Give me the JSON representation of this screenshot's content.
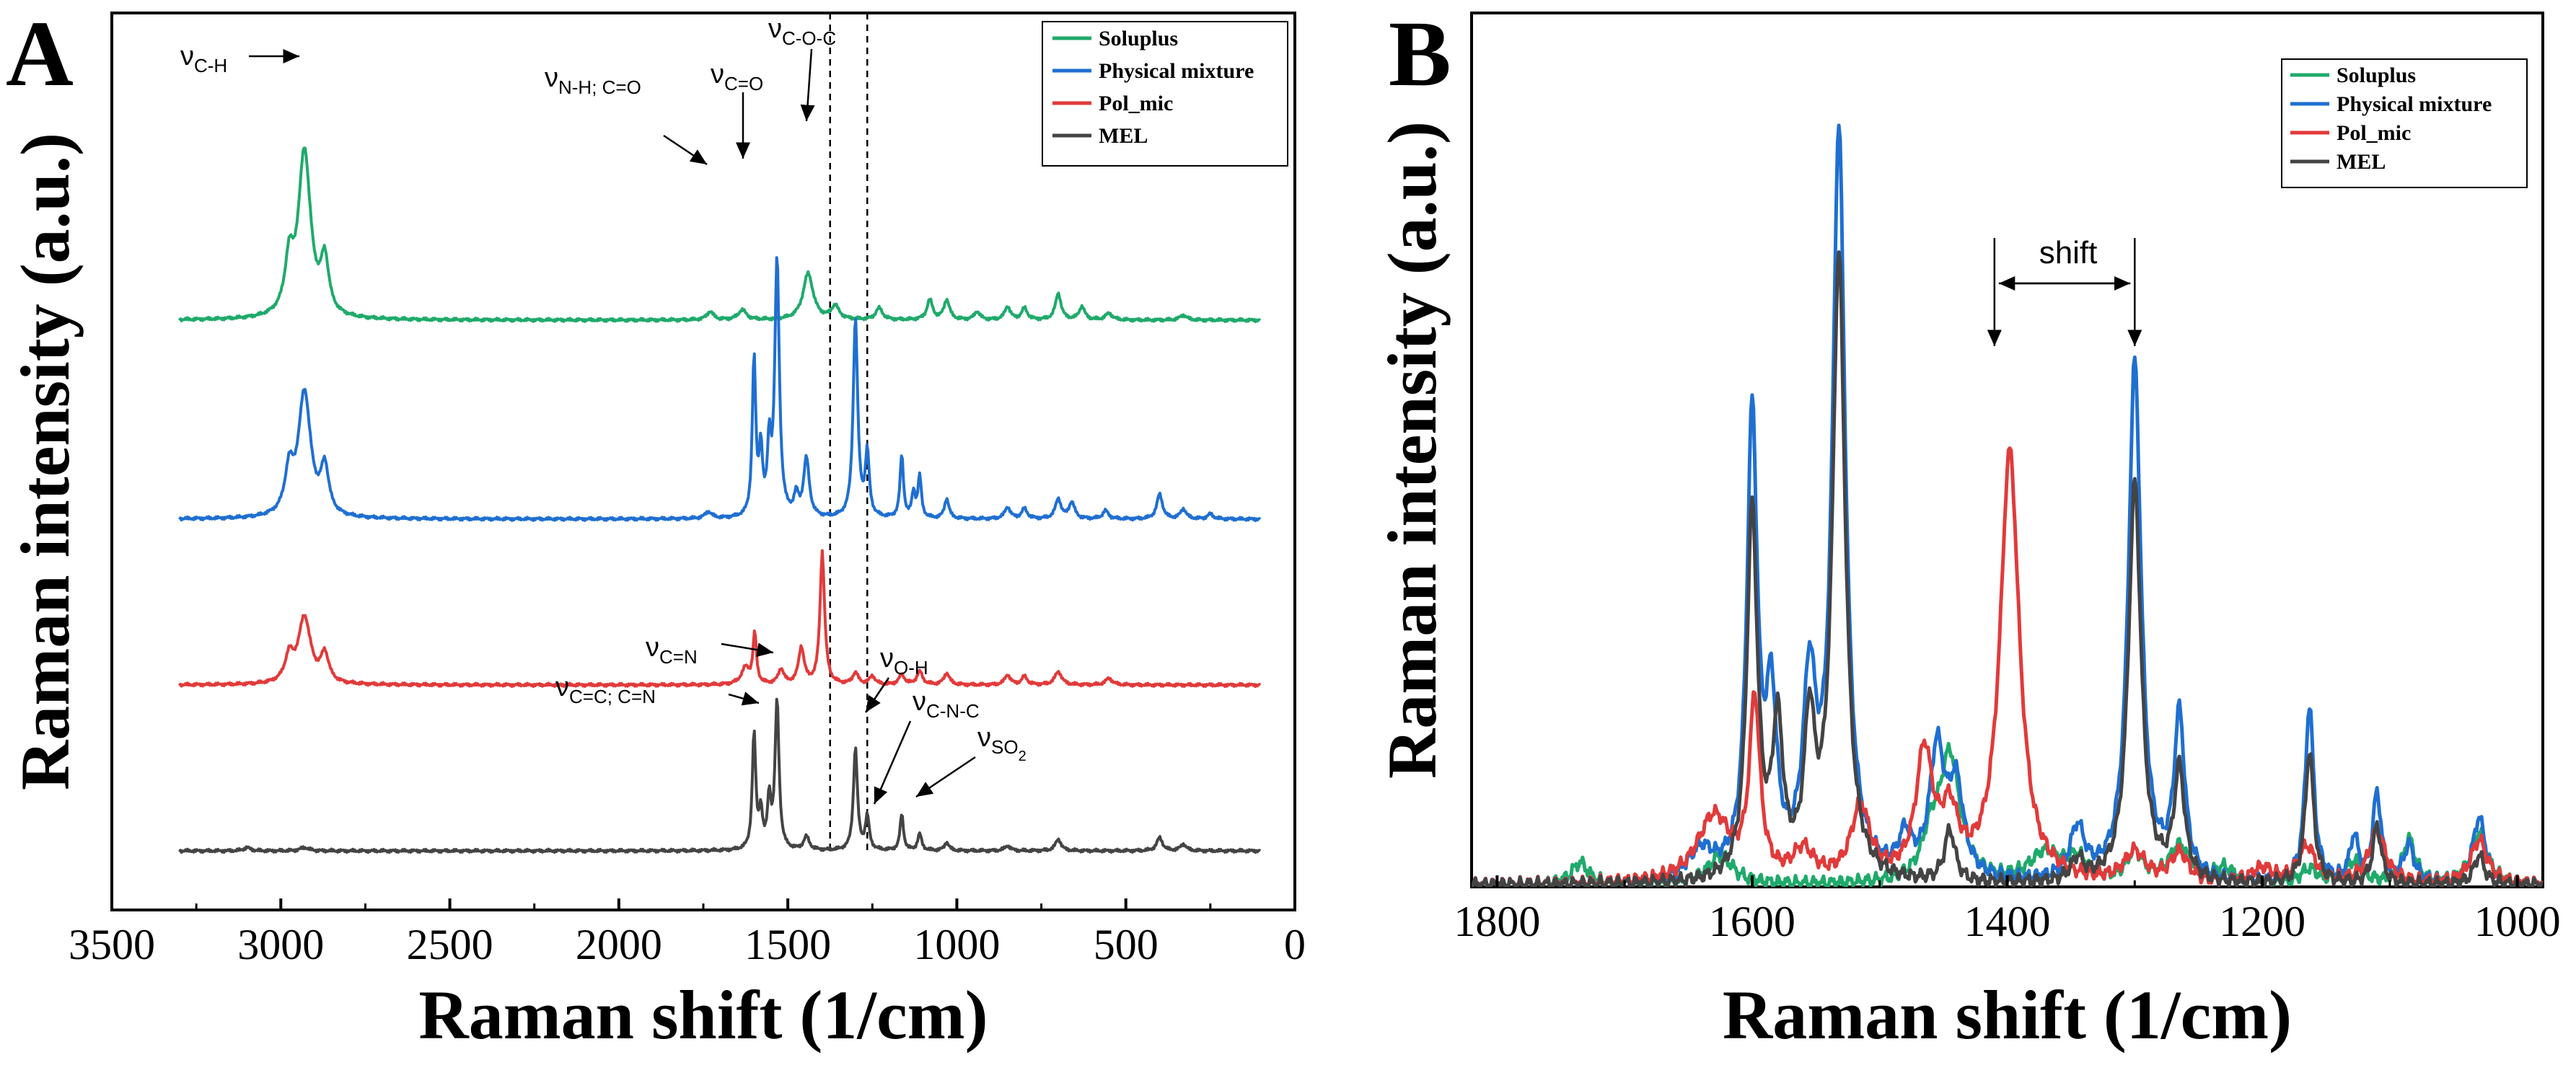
{
  "chart_data": [
    {
      "panel": "A",
      "type": "line",
      "xlabel": "Raman shift (1/cm)",
      "ylabel": "Raman intensity (a.u.)",
      "xlim": [
        3500,
        0
      ],
      "xticks": [
        "3500",
        "3000",
        "2500",
        "2000",
        "1500",
        "1000",
        "500",
        "0"
      ],
      "grid": false,
      "stacked": true,
      "legend_position": "top-right",
      "reference_lines_x": [
        1375,
        1265
      ],
      "series": [
        {
          "name": "Soluplus",
          "color": "#1faa6b",
          "offset": 3.2,
          "peaks": [
            [
              2930,
              1.0,
              22
            ],
            [
              2975,
              0.3,
              15
            ],
            [
              2870,
              0.32,
              14
            ],
            [
              1730,
              0.05,
              12
            ],
            [
              1635,
              0.06,
              14
            ],
            [
              1440,
              0.28,
              18
            ],
            [
              1360,
              0.08,
              14
            ],
            [
              1230,
              0.07,
              12
            ],
            [
              1080,
              0.12,
              10
            ],
            [
              1030,
              0.12,
              10
            ],
            [
              940,
              0.05,
              10
            ],
            [
              850,
              0.08,
              10
            ],
            [
              800,
              0.07,
              10
            ],
            [
              700,
              0.16,
              10
            ],
            [
              630,
              0.08,
              10
            ],
            [
              550,
              0.04,
              12
            ],
            [
              330,
              0.03,
              12
            ]
          ],
          "xmax": 3300,
          "xmin": 100
        },
        {
          "name": "Physical mixture",
          "color": "#1f6fd1",
          "offset": 2.0,
          "peaks": [
            [
              2930,
              0.75,
              22
            ],
            [
              2975,
              0.25,
              15
            ],
            [
              2870,
              0.28,
              14
            ],
            [
              1735,
              0.04,
              12
            ],
            [
              1600,
              0.95,
              6
            ],
            [
              1580,
              0.38,
              6
            ],
            [
              1555,
              0.4,
              6
            ],
            [
              1532,
              1.55,
              8
            ],
            [
              1475,
              0.12,
              8
            ],
            [
              1445,
              0.35,
              10
            ],
            [
              1300,
              1.2,
              8
            ],
            [
              1265,
              0.38,
              7
            ],
            [
              1163,
              0.38,
              6
            ],
            [
              1128,
              0.15,
              6
            ],
            [
              1110,
              0.25,
              6
            ],
            [
              1030,
              0.12,
              8
            ],
            [
              850,
              0.07,
              10
            ],
            [
              800,
              0.06,
              10
            ],
            [
              700,
              0.12,
              10
            ],
            [
              660,
              0.1,
              10
            ],
            [
              560,
              0.05,
              10
            ],
            [
              400,
              0.15,
              10
            ],
            [
              330,
              0.06,
              10
            ],
            [
              250,
              0.03,
              10
            ]
          ],
          "xmax": 3300,
          "xmin": 100
        },
        {
          "name": "Pol_mic",
          "color": "#e23a3a",
          "offset": 1.0,
          "peaks": [
            [
              2930,
              0.4,
              22
            ],
            [
              2975,
              0.15,
              15
            ],
            [
              2870,
              0.17,
              14
            ],
            [
              1625,
              0.1,
              15
            ],
            [
              1598,
              0.3,
              6
            ],
            [
              1520,
              0.09,
              10
            ],
            [
              1460,
              0.22,
              10
            ],
            [
              1398,
              0.8,
              8
            ],
            [
              1300,
              0.07,
              10
            ],
            [
              1250,
              0.05,
              10
            ],
            [
              1163,
              0.06,
              10
            ],
            [
              1110,
              0.08,
              10
            ],
            [
              1030,
              0.07,
              10
            ],
            [
              850,
              0.06,
              10
            ],
            [
              800,
              0.05,
              10
            ],
            [
              700,
              0.08,
              12
            ],
            [
              550,
              0.04,
              12
            ]
          ],
          "xmax": 3300,
          "xmin": 100
        },
        {
          "name": "MEL",
          "color": "#444444",
          "offset": 0.0,
          "peaks": [
            [
              3100,
              0.02,
              12
            ],
            [
              2930,
              0.02,
              15
            ],
            [
              1600,
              0.7,
              6
            ],
            [
              1580,
              0.22,
              6
            ],
            [
              1555,
              0.3,
              6
            ],
            [
              1532,
              0.9,
              7
            ],
            [
              1445,
              0.08,
              10
            ],
            [
              1300,
              0.62,
              7
            ],
            [
              1265,
              0.2,
              7
            ],
            [
              1163,
              0.22,
              6
            ],
            [
              1110,
              0.1,
              7
            ],
            [
              1030,
              0.05,
              8
            ],
            [
              850,
              0.03,
              10
            ],
            [
              700,
              0.07,
              10
            ],
            [
              400,
              0.08,
              10
            ],
            [
              330,
              0.04,
              10
            ]
          ],
          "xmax": 3300,
          "xmin": 100
        }
      ],
      "annotations": [
        {
          "main": "ν",
          "sub": "C-H"
        },
        {
          "main": "ν",
          "sub": "N-H; C=O"
        },
        {
          "main": "ν",
          "sub": "C=O"
        },
        {
          "main": "ν",
          "sub": "C-O-C"
        },
        {
          "main": "ν",
          "sub": "C=N"
        },
        {
          "main": "ν",
          "sub": "C=C; C=N"
        },
        {
          "main": "ν",
          "sub": "O-H"
        },
        {
          "main": "ν",
          "sub": "C-N-C"
        },
        {
          "main": "ν",
          "sub": "SO",
          "sub2": "2"
        }
      ]
    },
    {
      "panel": "B",
      "type": "line",
      "xlabel": "Raman shift (1/cm)",
      "ylabel": "Raman intensity (a.u.)",
      "xlim": [
        1820,
        980
      ],
      "xticks": [
        "1800",
        "1600",
        "1400",
        "1200",
        "1000"
      ],
      "grid": false,
      "stacked": false,
      "legend_position": "top-right",
      "annotation": "shift",
      "shift_arrow_x": [
        1410,
        1300
      ],
      "series": [
        {
          "name": "Soluplus",
          "color": "#1faa6b",
          "peaks": [
            [
              1735,
              0.03,
              8
            ],
            [
              1625,
              0.04,
              12
            ],
            [
              1445,
              0.17,
              10
            ],
            [
              1460,
              0.05,
              8
            ],
            [
              1370,
              0.04,
              15
            ],
            [
              1345,
              0.03,
              10
            ],
            [
              1300,
              0.04,
              8
            ],
            [
              1265,
              0.05,
              10
            ],
            [
              1230,
              0.02,
              10
            ],
            [
              1163,
              0.02,
              8
            ],
            [
              1128,
              0.03,
              8
            ],
            [
              1085,
              0.06,
              6
            ],
            [
              1030,
              0.07,
              8
            ]
          ]
        },
        {
          "name": "Physical mixture",
          "color": "#1f6fd1",
          "peaks": [
            [
              1640,
              0.04,
              12
            ],
            [
              1600,
              0.62,
              5
            ],
            [
              1585,
              0.22,
              5
            ],
            [
              1555,
              0.25,
              6
            ],
            [
              1532,
              1.0,
              6
            ],
            [
              1480,
              0.05,
              6
            ],
            [
              1455,
              0.17,
              7
            ],
            [
              1440,
              0.12,
              7
            ],
            [
              1345,
              0.07,
              7
            ],
            [
              1300,
              0.7,
              6
            ],
            [
              1265,
              0.22,
              5
            ],
            [
              1163,
              0.24,
              4
            ],
            [
              1128,
              0.06,
              4
            ],
            [
              1110,
              0.12,
              4
            ],
            [
              1085,
              0.05,
              5
            ],
            [
              1030,
              0.09,
              6
            ]
          ]
        },
        {
          "name": "Pol_mic",
          "color": "#e23a3a",
          "peaks": [
            [
              1630,
              0.09,
              16
            ],
            [
              1598,
              0.24,
              5
            ],
            [
              1560,
              0.04,
              10
            ],
            [
              1515,
              0.1,
              9
            ],
            [
              1465,
              0.17,
              8
            ],
            [
              1445,
              0.08,
              8
            ],
            [
              1398,
              0.58,
              9
            ],
            [
              1300,
              0.04,
              10
            ],
            [
              1265,
              0.04,
              8
            ],
            [
              1200,
              0.02,
              10
            ],
            [
              1165,
              0.05,
              8
            ],
            [
              1110,
              0.07,
              8
            ],
            [
              1030,
              0.06,
              8
            ]
          ]
        },
        {
          "name": "MEL",
          "color": "#444444",
          "peaks": [
            [
              1600,
              0.5,
              5
            ],
            [
              1580,
              0.2,
              5
            ],
            [
              1555,
              0.2,
              5
            ],
            [
              1532,
              0.84,
              6
            ],
            [
              1445,
              0.07,
              5
            ],
            [
              1345,
              0.03,
              6
            ],
            [
              1300,
              0.54,
              6
            ],
            [
              1265,
              0.15,
              5
            ],
            [
              1163,
              0.18,
              4
            ],
            [
              1110,
              0.08,
              4
            ],
            [
              1030,
              0.04,
              5
            ]
          ]
        }
      ]
    }
  ]
}
